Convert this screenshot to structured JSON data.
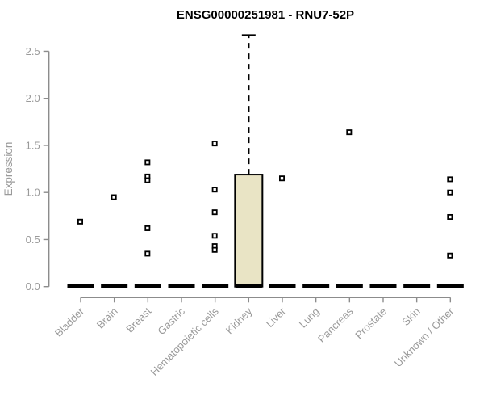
{
  "chart_data": {
    "type": "boxplot",
    "title": "ENSG00000251981 - RNU7-52P",
    "ylabel": "Expression",
    "yticks": [
      0.0,
      0.5,
      1.0,
      1.5,
      2.0,
      2.5
    ],
    "ylim": [
      0.0,
      2.72
    ],
    "grid": false,
    "legend": "none",
    "categories": [
      "Bladder",
      "Brain",
      "Breast",
      "Gastric",
      "Hematopoietic cells",
      "Kidney",
      "Liver",
      "Lung",
      "Pancreas",
      "Prostate",
      "Skin",
      "Unknown / Other"
    ],
    "boxes": [
      {
        "category": "Bladder",
        "median": 0,
        "q1": 0,
        "q3": 0,
        "whisker_low": 0,
        "whisker_high": 0,
        "outliers": [
          0.69
        ]
      },
      {
        "category": "Brain",
        "median": 0,
        "q1": 0,
        "q3": 0,
        "whisker_low": 0,
        "whisker_high": 0,
        "outliers": [
          0.95
        ]
      },
      {
        "category": "Breast",
        "median": 0,
        "q1": 0,
        "q3": 0,
        "whisker_low": 0,
        "whisker_high": 0,
        "outliers": [
          1.32,
          1.17,
          1.13,
          0.62,
          0.35
        ]
      },
      {
        "category": "Gastric",
        "median": 0,
        "q1": 0,
        "q3": 0,
        "whisker_low": 0,
        "whisker_high": 0,
        "outliers": []
      },
      {
        "category": "Hematopoietic cells",
        "median": 0,
        "q1": 0,
        "q3": 0,
        "whisker_low": 0,
        "whisker_high": 0,
        "outliers": [
          1.52,
          1.03,
          0.79,
          0.54,
          0.43,
          0.39
        ]
      },
      {
        "category": "Kidney",
        "median": 0,
        "q1": 0,
        "q3": 1.19,
        "whisker_low": 0,
        "whisker_high": 2.67,
        "outliers": []
      },
      {
        "category": "Liver",
        "median": 0,
        "q1": 0,
        "q3": 0,
        "whisker_low": 0,
        "whisker_high": 0,
        "outliers": [
          1.15
        ]
      },
      {
        "category": "Lung",
        "median": 0,
        "q1": 0,
        "q3": 0,
        "whisker_low": 0,
        "whisker_high": 0,
        "outliers": []
      },
      {
        "category": "Pancreas",
        "median": 0,
        "q1": 0,
        "q3": 0,
        "whisker_low": 0,
        "whisker_high": 0,
        "outliers": [
          1.64
        ]
      },
      {
        "category": "Prostate",
        "median": 0,
        "q1": 0,
        "q3": 0,
        "whisker_low": 0,
        "whisker_high": 0,
        "outliers": []
      },
      {
        "category": "Skin",
        "median": 0,
        "q1": 0,
        "q3": 0,
        "whisker_low": 0,
        "whisker_high": 0,
        "outliers": []
      },
      {
        "category": "Unknown / Other",
        "median": 0,
        "q1": 0,
        "q3": 0,
        "whisker_low": 0,
        "whisker_high": 0,
        "outliers": [
          1.14,
          1.0,
          0.74,
          0.33
        ]
      }
    ],
    "colors": {
      "box_fill": "#e9e4c5",
      "box_border": "#000000",
      "median": "#000000",
      "whisker": "#000000",
      "outlier_stroke": "#000000",
      "outlier_fill": "#ffffff",
      "axis": "#8c8c8c",
      "tick_label": "#9a9a9a",
      "title": "#000000"
    }
  }
}
